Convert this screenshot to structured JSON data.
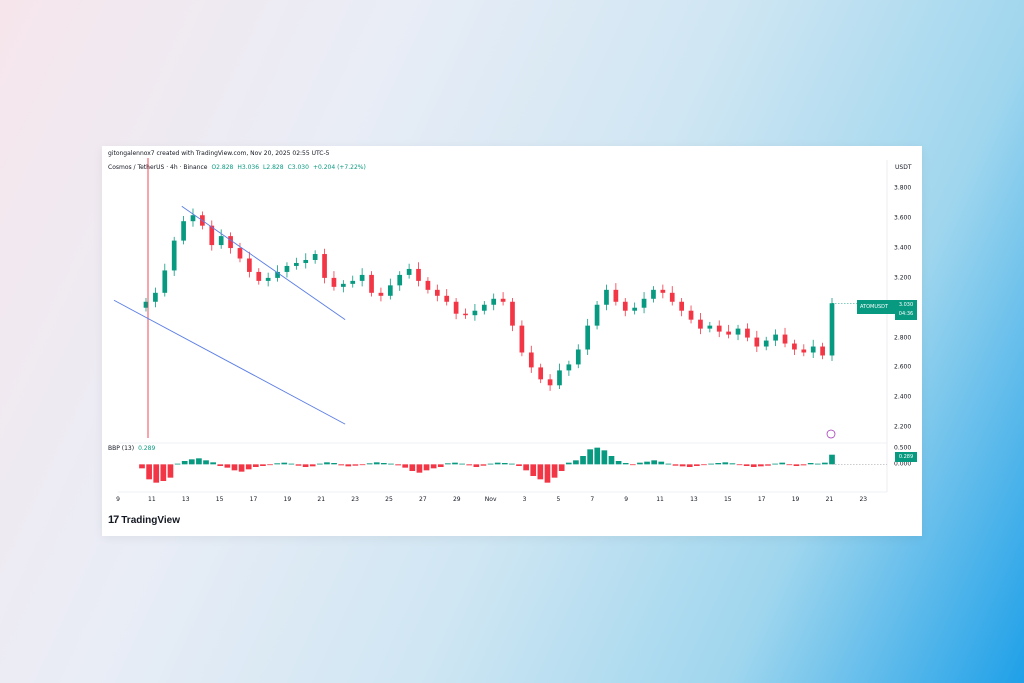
{
  "header": {
    "author_line": "gitongalennox7 created with TradingView.com, Nov 20, 2025 02:55 UTC-5",
    "symbol": "Cosmos / TetherUS · 4h · Binance",
    "open": "O2.828",
    "high": "H3.036",
    "low": "L2.828",
    "close": "C3.030",
    "change": "+0.204 (+7.22%)",
    "currency": "USDT"
  },
  "price_tag": {
    "ticker": "ATOMUSDT",
    "price": "3.030",
    "countdown": "04:36"
  },
  "indicator": {
    "name": "BBP (13)",
    "value": "0.289",
    "tag": "0.289"
  },
  "brand": {
    "logo_text": "TradingView"
  },
  "colors": {
    "up": "#089981",
    "down": "#f23645",
    "trendline": "#5b7ee5",
    "background_card": "#ffffff"
  },
  "chart_data": [
    {
      "type": "candlestick",
      "title": "",
      "xlabel": "",
      "ylabel": "",
      "ylim": [
        2.1,
        3.95
      ],
      "x_ticks": [
        "9",
        "11",
        "13",
        "15",
        "17",
        "19",
        "21",
        "23",
        "25",
        "27",
        "29",
        "Nov",
        "3",
        "5",
        "7",
        "9",
        "11",
        "13",
        "15",
        "17",
        "19",
        "21",
        "23"
      ],
      "y_ticks": [
        "3.800",
        "3.600",
        "3.400",
        "3.200",
        "3.000",
        "2.800",
        "2.600",
        "2.400",
        "2.200"
      ],
      "series": [
        {
          "values_close_approx": [
            3.04,
            3.1,
            3.25,
            3.45,
            3.58,
            3.62,
            3.55,
            3.42,
            3.48,
            3.4,
            3.33,
            3.24,
            3.18,
            3.2,
            3.24,
            3.28,
            3.3,
            3.32,
            3.36,
            3.2,
            3.14,
            3.16,
            3.18,
            3.22,
            3.1,
            3.08,
            3.15,
            3.22,
            3.26,
            3.18,
            3.12,
            3.08,
            3.04,
            2.96,
            2.95,
            2.98,
            3.02,
            3.06,
            3.04,
            2.88,
            2.7,
            2.6,
            2.52,
            2.48,
            2.58,
            2.62,
            2.72,
            2.88,
            3.02,
            3.12,
            3.04,
            2.98,
            3.0,
            3.06,
            3.12,
            3.1,
            3.04,
            2.98,
            2.92,
            2.86,
            2.88,
            2.84,
            2.82,
            2.86,
            2.8,
            2.74,
            2.78,
            2.82,
            2.76,
            2.72,
            2.7,
            2.74,
            2.68,
            3.03
          ]
        }
      ],
      "trendlines": [
        {
          "from": [
            "13",
            3.68
          ],
          "to": [
            "23",
            2.92
          ]
        },
        {
          "from": [
            "9",
            3.05
          ],
          "to": [
            "23",
            2.22
          ]
        }
      ]
    },
    {
      "type": "bar",
      "title": "",
      "xlabel": "",
      "ylabel": "",
      "ylim": [
        -0.65,
        0.55
      ],
      "y_ticks": [
        "0.500",
        "0.000"
      ],
      "series": [
        {
          "values": [
            -0.12,
            -0.45,
            -0.55,
            -0.5,
            -0.4,
            0.02,
            0.1,
            0.15,
            0.18,
            0.12,
            0.06,
            -0.05,
            -0.1,
            -0.18,
            -0.22,
            -0.15,
            -0.08,
            -0.05,
            -0.02,
            0.03,
            0.05,
            0.02,
            -0.04,
            -0.08,
            -0.06,
            0.02,
            0.06,
            0.04,
            -0.03,
            -0.06,
            -0.04,
            -0.02,
            0.03,
            0.06,
            0.04,
            0.02,
            -0.03,
            -0.1,
            -0.2,
            -0.25,
            -0.18,
            -0.12,
            -0.08,
            0.03,
            0.05,
            0.02,
            -0.03,
            -0.08,
            -0.04,
            0.02,
            0.05,
            0.04,
            0.02,
            -0.05,
            -0.18,
            -0.35,
            -0.45,
            -0.55,
            -0.4,
            -0.2,
            0.05,
            0.12,
            0.25,
            0.45,
            0.5,
            0.42,
            0.25,
            0.1,
            0.04,
            -0.02,
            0.05,
            0.08,
            0.12,
            0.08,
            0.02,
            -0.04,
            -0.06,
            -0.08,
            -0.05,
            -0.02,
            0.02,
            0.04,
            0.06,
            0.03,
            -0.02,
            -0.05,
            -0.08,
            -0.06,
            -0.04,
            0.02,
            0.05,
            -0.02,
            -0.05,
            -0.03,
            0.04,
            0.02,
            0.05,
            0.289
          ]
        }
      ]
    }
  ]
}
